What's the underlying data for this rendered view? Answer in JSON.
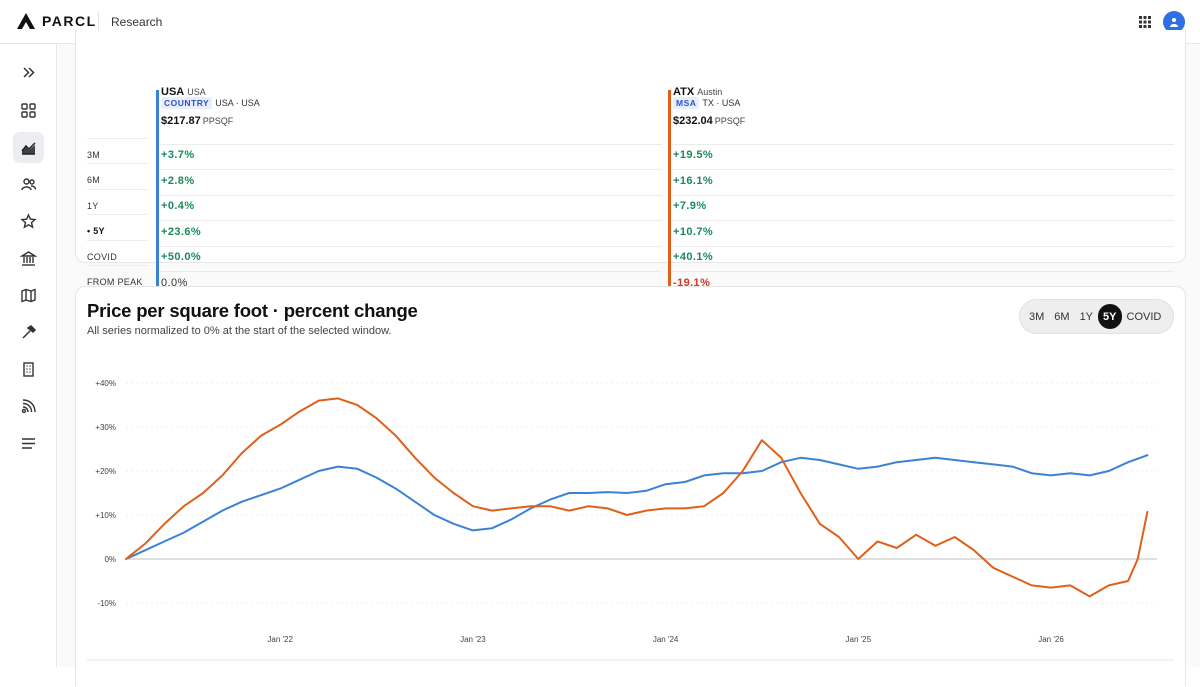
{
  "header": {
    "logo_text": "PARCL",
    "breadcrumb": "Research",
    "apps_icon": "grid-icon",
    "avatar_icon": "user-icon"
  },
  "sidebar": {
    "items": [
      {
        "icon": "expand-icon"
      },
      {
        "icon": "dashboard-icon"
      },
      {
        "icon": "chart-icon",
        "active": true
      },
      {
        "icon": "people-icon"
      },
      {
        "icon": "star-icon"
      },
      {
        "icon": "bank-icon"
      },
      {
        "icon": "map-icon"
      },
      {
        "icon": "hammer-icon"
      },
      {
        "icon": "building-icon"
      },
      {
        "icon": "signal-icon"
      },
      {
        "icon": "menu-icon"
      }
    ]
  },
  "comparison": {
    "row_labels": [
      "3M",
      "6M",
      "1Y",
      "• 5Y",
      "COVID",
      "FROM PEAK"
    ],
    "columns": [
      {
        "code": "USA",
        "name": "USA",
        "chip": "COUNTRY",
        "region": "USA · USA",
        "price": "$217.87",
        "unit": "PPSQF",
        "color": "#3b82d6",
        "values": [
          "+3.7%",
          "+2.8%",
          "+0.4%",
          "+23.6%",
          "+50.0%",
          "0.0%"
        ],
        "signs": [
          "pos",
          "pos",
          "pos",
          "pos",
          "pos",
          "zero"
        ]
      },
      {
        "code": "ATX",
        "name": "Austin",
        "chip": "MSA",
        "region": "TX · USA",
        "price": "$232.04",
        "unit": "PPSQF",
        "color": "#e0601a",
        "values": [
          "+19.5%",
          "+16.1%",
          "+7.9%",
          "+10.7%",
          "+40.1%",
          "-19.1%"
        ],
        "signs": [
          "pos",
          "pos",
          "pos",
          "pos",
          "pos",
          "neg"
        ]
      }
    ]
  },
  "chart_section": {
    "title": "Price per square foot · percent change",
    "subtitle": "All series normalized to 0% at the start of the selected window.",
    "ranges": [
      {
        "label": "3M"
      },
      {
        "label": "6M"
      },
      {
        "label": "1Y"
      },
      {
        "label": "5Y",
        "active": true
      },
      {
        "label": "COVID"
      }
    ]
  },
  "chart_data": {
    "type": "line",
    "x_ticks": [
      "Jan '22",
      "Jan '23",
      "Jan '24",
      "Jan '25",
      "Jan '26"
    ],
    "y_ticks": [
      "-10%",
      "0%",
      "+10%",
      "+20%",
      "+30%",
      "+40%"
    ],
    "ylim": [
      -10,
      40
    ],
    "grid": true,
    "xlim": [
      2021.2,
      2026.55
    ],
    "series": [
      {
        "name": "USA",
        "color": "#3b82d6",
        "points": [
          [
            2021.2,
            0
          ],
          [
            2021.3,
            2
          ],
          [
            2021.4,
            4
          ],
          [
            2021.5,
            6
          ],
          [
            2021.6,
            8.5
          ],
          [
            2021.7,
            11
          ],
          [
            2021.8,
            13
          ],
          [
            2021.9,
            14.5
          ],
          [
            2022.0,
            16
          ],
          [
            2022.1,
            18
          ],
          [
            2022.2,
            20
          ],
          [
            2022.3,
            21
          ],
          [
            2022.4,
            20.5
          ],
          [
            2022.5,
            18.5
          ],
          [
            2022.6,
            16
          ],
          [
            2022.7,
            13
          ],
          [
            2022.8,
            10
          ],
          [
            2022.9,
            8
          ],
          [
            2023.0,
            6.5
          ],
          [
            2023.1,
            7
          ],
          [
            2023.2,
            9
          ],
          [
            2023.3,
            11.5
          ],
          [
            2023.4,
            13.5
          ],
          [
            2023.5,
            15
          ],
          [
            2023.6,
            15
          ],
          [
            2023.7,
            15.2
          ],
          [
            2023.8,
            15
          ],
          [
            2023.9,
            15.5
          ],
          [
            2024.0,
            17
          ],
          [
            2024.1,
            17.5
          ],
          [
            2024.2,
            19
          ],
          [
            2024.3,
            19.5
          ],
          [
            2024.4,
            19.5
          ],
          [
            2024.5,
            20
          ],
          [
            2024.6,
            22
          ],
          [
            2024.7,
            23
          ],
          [
            2024.8,
            22.5
          ],
          [
            2024.9,
            21.5
          ],
          [
            2025.0,
            20.5
          ],
          [
            2025.1,
            21
          ],
          [
            2025.2,
            22
          ],
          [
            2025.3,
            22.5
          ],
          [
            2025.4,
            23
          ],
          [
            2025.5,
            22.5
          ],
          [
            2025.6,
            22
          ],
          [
            2025.7,
            21.5
          ],
          [
            2025.8,
            21
          ],
          [
            2025.9,
            19.5
          ],
          [
            2026.0,
            19
          ],
          [
            2026.1,
            19.5
          ],
          [
            2026.2,
            19
          ],
          [
            2026.3,
            20
          ],
          [
            2026.4,
            22
          ],
          [
            2026.5,
            23.6
          ]
        ]
      },
      {
        "name": "ATX",
        "color": "#e0601a",
        "points": [
          [
            2021.2,
            0
          ],
          [
            2021.3,
            3.5
          ],
          [
            2021.4,
            8
          ],
          [
            2021.5,
            12
          ],
          [
            2021.6,
            15
          ],
          [
            2021.7,
            19
          ],
          [
            2021.8,
            24
          ],
          [
            2021.9,
            28
          ],
          [
            2022.0,
            30.5
          ],
          [
            2022.1,
            33.5
          ],
          [
            2022.2,
            36
          ],
          [
            2022.3,
            36.5
          ],
          [
            2022.4,
            35
          ],
          [
            2022.5,
            32
          ],
          [
            2022.6,
            28
          ],
          [
            2022.7,
            23
          ],
          [
            2022.8,
            18.5
          ],
          [
            2022.9,
            15
          ],
          [
            2023.0,
            12
          ],
          [
            2023.1,
            11
          ],
          [
            2023.2,
            11.5
          ],
          [
            2023.3,
            12
          ],
          [
            2023.4,
            12
          ],
          [
            2023.5,
            11
          ],
          [
            2023.6,
            12
          ],
          [
            2023.7,
            11.5
          ],
          [
            2023.8,
            10
          ],
          [
            2023.9,
            11
          ],
          [
            2024.0,
            11.5
          ],
          [
            2024.1,
            11.5
          ],
          [
            2024.2,
            12
          ],
          [
            2024.3,
            15
          ],
          [
            2024.4,
            20
          ],
          [
            2024.5,
            27
          ],
          [
            2024.6,
            23
          ],
          [
            2024.7,
            15
          ],
          [
            2024.8,
            8
          ],
          [
            2024.9,
            5
          ],
          [
            2025.0,
            0
          ],
          [
            2025.1,
            4
          ],
          [
            2025.2,
            2.5
          ],
          [
            2025.3,
            5.5
          ],
          [
            2025.4,
            3
          ],
          [
            2025.5,
            5
          ],
          [
            2025.6,
            2
          ],
          [
            2025.7,
            -2
          ],
          [
            2025.8,
            -4
          ],
          [
            2025.9,
            -6
          ],
          [
            2026.0,
            -6.5
          ],
          [
            2026.1,
            -6
          ],
          [
            2026.2,
            -8.5
          ],
          [
            2026.3,
            -6
          ],
          [
            2026.4,
            -5
          ],
          [
            2026.45,
            0
          ],
          [
            2026.5,
            10.7
          ]
        ]
      }
    ]
  }
}
